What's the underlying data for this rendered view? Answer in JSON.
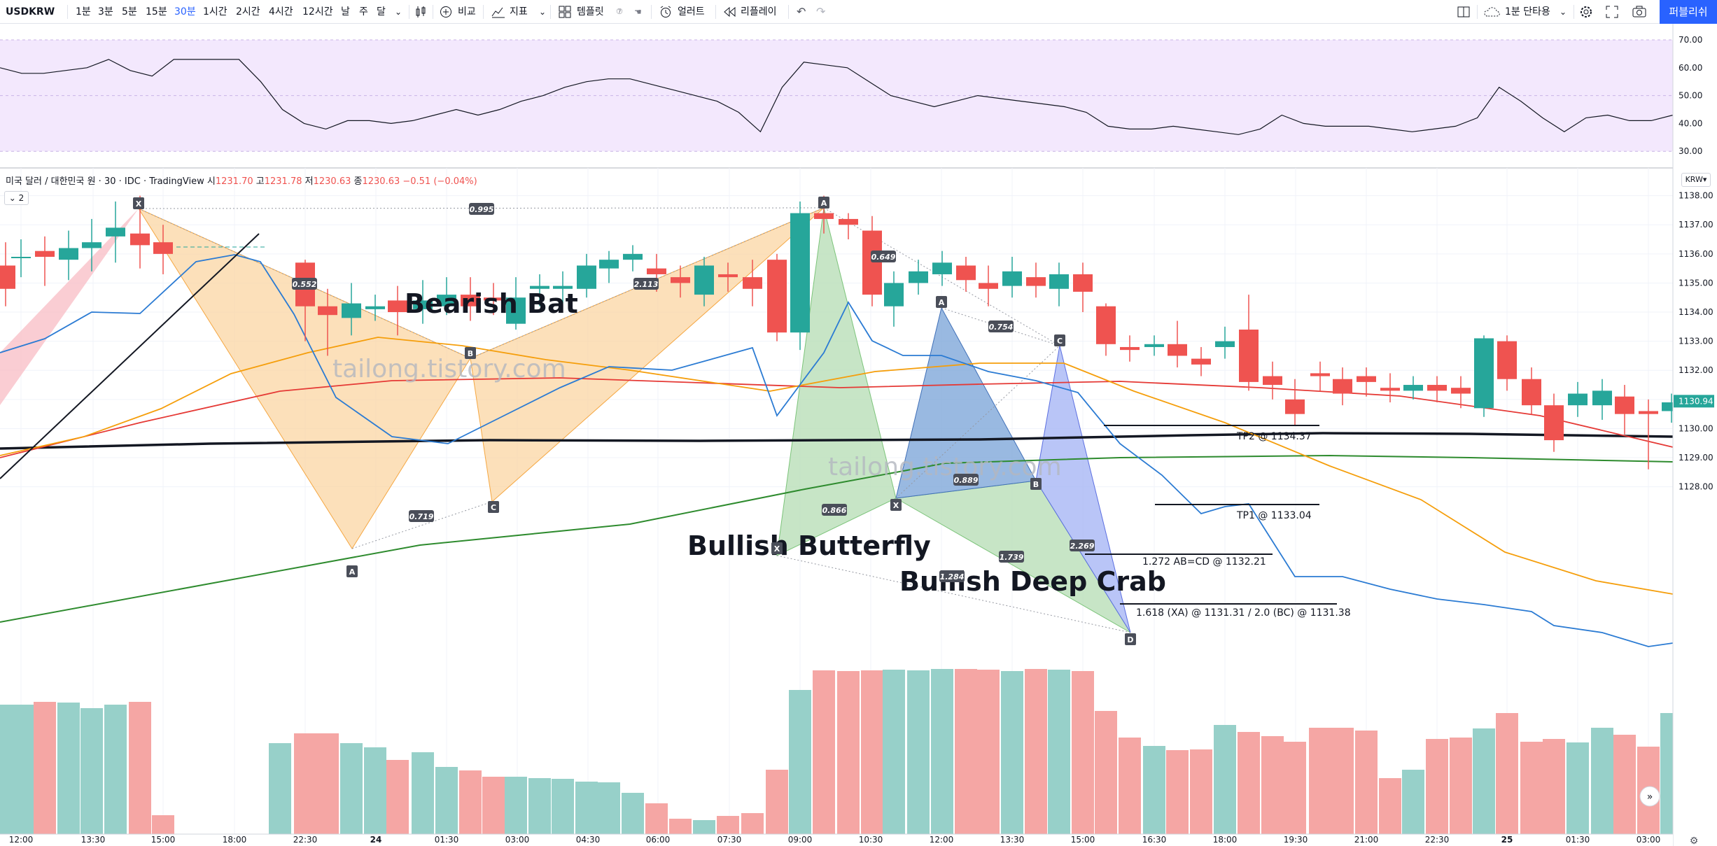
{
  "toolbar": {
    "symbol": "USDKRW",
    "intervals": [
      "1분",
      "3분",
      "5분",
      "15분",
      "30분",
      "1시간",
      "2시간",
      "4시간",
      "12시간",
      "날",
      "주",
      "달"
    ],
    "active_interval": "30분",
    "compare_label": "비교",
    "indicators_label": "지표",
    "templates_label": "템플릿",
    "alert_label": "얼러트",
    "replay_label": "리플레이",
    "layout_label": "1분 단타용",
    "publish_label": "퍼블리쉬",
    "icons": [
      "chevron-down-icon",
      "candles-icon",
      "plus-circle-icon",
      "indicator-icon",
      "template-icon",
      "alert-clock-icon",
      "replay-icon",
      "undo-icon",
      "redo-icon",
      "split-view-icon",
      "cloud-icon",
      "gear-icon",
      "fullscreen-icon",
      "camera-icon"
    ]
  },
  "legend": {
    "title": "미국 달러 / 대한민국 원 · 30 · IDC · TradingView",
    "open_label": "시",
    "open": "1231.70",
    "high_label": "고",
    "high": "1231.78",
    "low_label": "저",
    "low": "1230.63",
    "close_label": "종",
    "close": "1230.63",
    "change": "−0.51 (−0.04%)",
    "collapsed_count": "2",
    "currency": "KRW"
  },
  "colors": {
    "up": "#26a69a",
    "down": "#ef5350",
    "accent": "#2962ff",
    "rsi_bg": "#f3e8fd",
    "rsi_line": "#131722"
  },
  "price_axis": {
    "ticks": [
      "1138.00",
      "1137.00",
      "1136.00",
      "1135.00",
      "1134.00",
      "1133.00",
      "1132.00",
      "1131.00",
      "1130.00",
      "1129.00",
      "1128.00"
    ],
    "last_price": "1130.94"
  },
  "rsi_axis": {
    "ticks": [
      "70.00",
      "60.00",
      "50.00",
      "40.00",
      "30.00"
    ]
  },
  "time_axis": {
    "ticks": [
      "12:00",
      "13:30",
      "15:00",
      "18:00",
      "22:30",
      "24",
      "01:30",
      "03:00",
      "04:30",
      "06:00",
      "07:30",
      "09:00",
      "10:30",
      "12:00",
      "13:30",
      "15:00",
      "16:30",
      "18:00",
      "19:30",
      "21:00",
      "22:30",
      "25",
      "01:30",
      "03:00"
    ]
  },
  "watermark": "tailong.tistory.com",
  "patterns": {
    "bat": "Bearish Bat",
    "butterfly": "Bullish Butterfly",
    "crab": "Bullish Deep Crab"
  },
  "point_labels": [
    "X",
    "A",
    "B",
    "C",
    "D"
  ],
  "ratios": [
    "0.552",
    "0.995",
    "0.719",
    "2.113",
    "0.866",
    "0.649",
    "1.284",
    "0.889",
    "0.754",
    "1.739",
    "2.269"
  ],
  "targets": {
    "tp2": "TP2 @ 1134.37",
    "tp1": "TP1 @ 1133.04",
    "abcd": "1.272 AB=CD @ 1132.21",
    "xa": "1.618 (XA) @ 1131.31 / 2.0 (BC) @ 1131.38"
  }
}
